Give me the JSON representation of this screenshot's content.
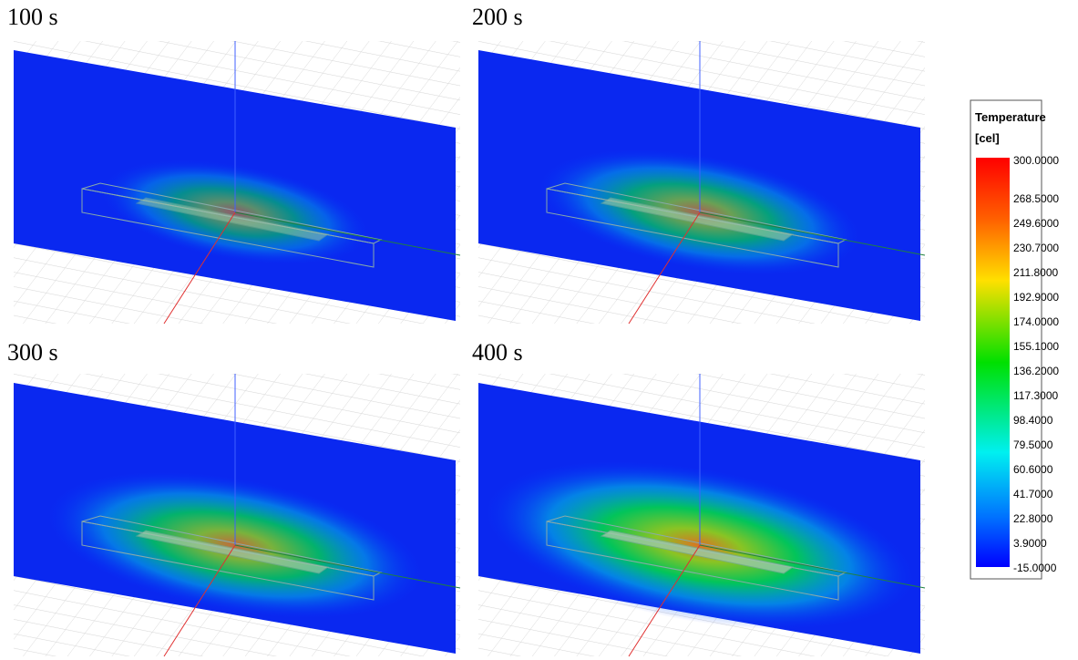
{
  "panels": [
    {
      "label": "100 s"
    },
    {
      "label": "200 s"
    },
    {
      "label": "300 s"
    },
    {
      "label": "400 s"
    }
  ],
  "legend": {
    "title": "Temperature",
    "unit": "[cel]",
    "labels": [
      "300.0000",
      "268.5000",
      "249.6000",
      "230.7000",
      "211.8000",
      "192.9000",
      "174.0000",
      "155.1000",
      "136.2000",
      "117.3000",
      "98.4000",
      "79.5000",
      "60.6000",
      "41.7000",
      "22.8000",
      "3.9000",
      "-15.0000"
    ]
  }
}
